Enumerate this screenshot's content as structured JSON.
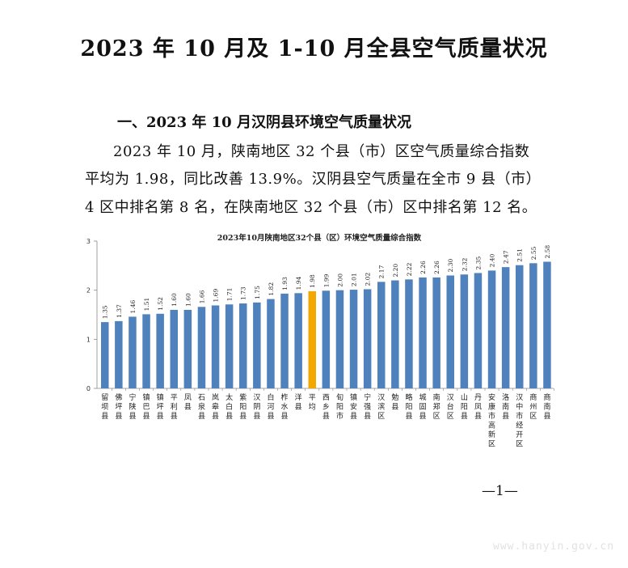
{
  "document": {
    "title": "2023 年 10 月及 1-10 月全县空气质量状况",
    "section_heading": "一、2023 年 10 月汉阴县环境空气质量状况",
    "paragraph_lines": [
      "2023 年 10 月，陕南地区 32 个县（市）区空气质量综合指数",
      "平均为 1.98，同比改善 13.9%。汉阴县空气质量在全市 9 县（市）",
      "4 区中排名第 8 名，在陕南地区 32 个县（市）区中排名第 12 名。"
    ],
    "page_number": "—1—",
    "watermark": "www.hanyin.gov.cn"
  },
  "chart_data": {
    "type": "bar",
    "title": "2023年10月陕南地区32个县（区）环境空气质量综合指数",
    "ylim": [
      0,
      3
    ],
    "yticks": [
      "0",
      "1",
      "2",
      "3"
    ],
    "grid": false,
    "bar_color": "#4F81BD",
    "highlight_color": "#F2A800",
    "highlight_category": "平均",
    "categories": [
      "留坝县",
      "佛坪县",
      "宁陕县",
      "镇巴县",
      "镇坪县",
      "平利县",
      "凤县",
      "石泉县",
      "岚皋县",
      "太白县",
      "紫阳县",
      "汉阴县",
      "白河县",
      "柞水县",
      "洋县",
      "平均",
      "西乡县",
      "旬阳市",
      "镇安县",
      "宁强县",
      "汉滨区",
      "勉县",
      "略阳县",
      "城固县",
      "南郑区",
      "汉台区",
      "山阳县",
      "丹凤县",
      "安康市高新区",
      "洛南县",
      "汉中市经开区",
      "商州区",
      "商南县"
    ],
    "values": [
      1.35,
      1.37,
      1.46,
      1.51,
      1.52,
      1.6,
      1.6,
      1.66,
      1.69,
      1.71,
      1.73,
      1.75,
      1.82,
      1.93,
      1.94,
      1.98,
      1.99,
      2.0,
      2.01,
      2.02,
      2.17,
      2.2,
      2.22,
      2.26,
      2.26,
      2.3,
      2.32,
      2.35,
      2.4,
      2.47,
      2.51,
      2.55,
      2.58
    ],
    "value_labels": [
      "1.35",
      "1.37",
      "1.46",
      "1.51",
      "1.52",
      "1.60",
      "1.60",
      "1.66",
      "1.69",
      "1.71",
      "1.73",
      "1.75",
      "1.82",
      "1.93",
      "1.94",
      "1.98",
      "1.99",
      "2.00",
      "2.01",
      "2.02",
      "2.17",
      "2.20",
      "2.22",
      "2.26",
      "2.26",
      "2.30",
      "2.32",
      "2.35",
      "2.40",
      "2.47",
      "2.51",
      "2.55",
      "2.58"
    ]
  }
}
